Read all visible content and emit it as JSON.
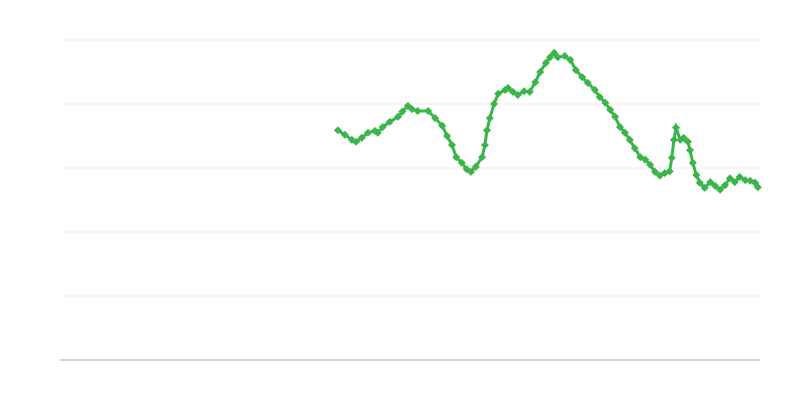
{
  "chart_data": {
    "type": "line",
    "title": "",
    "xlabel": "",
    "ylabel": "",
    "xlim": [
      0,
      100
    ],
    "ylim": [
      0,
      5
    ],
    "grid": true,
    "legend": "none",
    "colors": {
      "series": "#39b54a",
      "grid": "#ebebeb",
      "axis": "#aaaaaa"
    },
    "marker": "diamond",
    "series": [
      {
        "x": [
          39.7,
          40.7,
          41.7,
          42.3,
          43.1,
          44,
          45,
          45.4,
          46.1,
          47.1,
          48.3,
          48.9,
          49.7,
          50.3,
          51.1,
          52.6,
          53.6,
          54.6,
          55.3,
          56,
          56.6,
          57.4,
          58.1,
          58.7,
          59.4,
          60.3,
          60.7,
          61,
          61.4,
          62,
          62.6,
          63.6,
          64,
          64.7,
          65.4,
          66.3,
          67.1,
          67.9,
          68.6,
          69.4,
          70,
          70.6,
          71.1,
          72.1,
          72.9,
          73.7,
          74.6,
          75.4,
          76.4,
          77.1,
          77.9,
          78.6,
          79.3,
          80,
          80.7,
          81.4,
          82.1,
          82.9,
          83.6,
          84.3,
          85,
          85.7,
          86.4,
          87.1,
          87.4,
          87.7,
          88,
          88.6,
          89.1,
          89.7,
          90,
          90.4,
          90.9,
          91.4,
          92.1,
          92.9,
          93.6,
          94.3,
          95,
          95.7,
          96.4,
          97.1,
          97.9,
          98.6,
          99.3,
          99.7
        ],
        "y": [
          3.59,
          3.52,
          3.44,
          3.41,
          3.47,
          3.55,
          3.58,
          3.55,
          3.64,
          3.72,
          3.8,
          3.88,
          3.97,
          3.92,
          3.89,
          3.89,
          3.78,
          3.66,
          3.5,
          3.36,
          3.17,
          3.08,
          2.98,
          2.94,
          3.02,
          3.17,
          3.36,
          3.59,
          3.78,
          4.0,
          4.16,
          4.22,
          4.25,
          4.19,
          4.14,
          4.2,
          4.19,
          4.34,
          4.5,
          4.64,
          4.73,
          4.8,
          4.73,
          4.75,
          4.69,
          4.53,
          4.42,
          4.33,
          4.22,
          4.11,
          4.02,
          3.91,
          3.8,
          3.64,
          3.55,
          3.44,
          3.31,
          3.17,
          3.13,
          3.05,
          2.94,
          2.88,
          2.92,
          2.95,
          3.16,
          3.44,
          3.63,
          3.44,
          3.47,
          3.41,
          3.28,
          3.08,
          2.89,
          2.77,
          2.69,
          2.78,
          2.72,
          2.66,
          2.73,
          2.84,
          2.78,
          2.86,
          2.81,
          2.8,
          2.77,
          2.7
        ]
      }
    ]
  }
}
